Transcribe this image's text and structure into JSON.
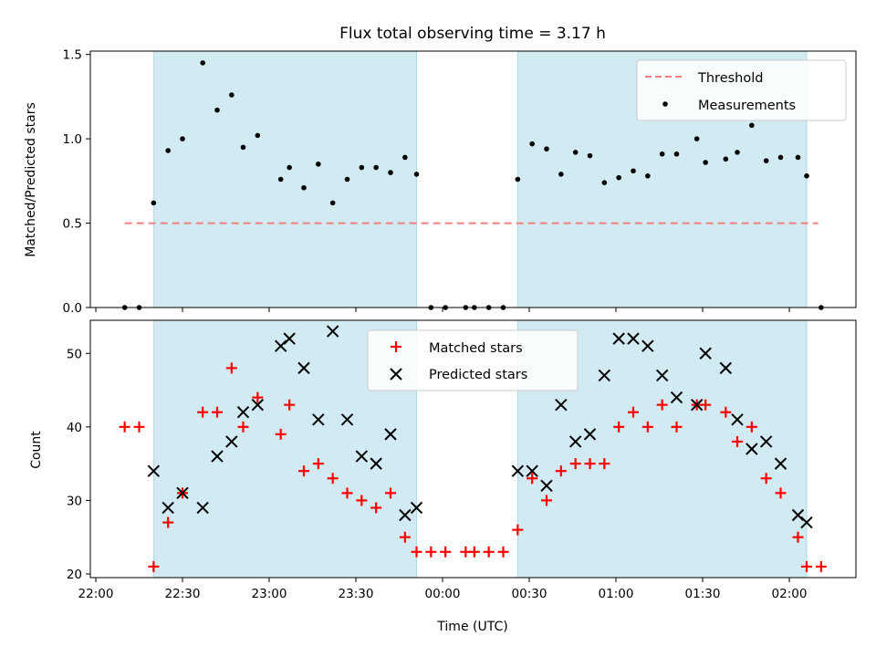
{
  "chart_data": [
    {
      "type": "scatter",
      "title": "Flux total observing time = 3.17 h",
      "xlabel": "",
      "ylabel": "Matched/Predicted stars",
      "ylim": [
        0,
        1.52
      ],
      "yticks": [
        "0.0",
        "0.5",
        "1.0",
        "1.5"
      ],
      "ytick_values": [
        0,
        0.5,
        1.0,
        1.5
      ],
      "xticks": [
        "22:00",
        "22:30",
        "23:00",
        "23:30",
        "00:00",
        "00:30",
        "01:00",
        "01:30",
        "02:00"
      ],
      "legend": {
        "location": "upper right",
        "entries": [
          "Threshold",
          "Measurements"
        ]
      },
      "threshold": {
        "name": "Threshold",
        "value": 0.5,
        "x_start": "22:10",
        "x_end": "02:10",
        "color": "#f08080"
      },
      "shaded_intervals": [
        [
          "22:20",
          "23:51"
        ],
        [
          "00:26",
          "02:06"
        ]
      ],
      "series": [
        {
          "name": "Measurements",
          "marker": "dot",
          "color": "#000000",
          "points": [
            [
              "22:10",
              0.0
            ],
            [
              "22:15",
              0.0
            ],
            [
              "22:20",
              0.62
            ],
            [
              "22:25",
              0.93
            ],
            [
              "22:30",
              1.0
            ],
            [
              "22:37",
              1.45
            ],
            [
              "22:42",
              1.17
            ],
            [
              "22:47",
              1.26
            ],
            [
              "22:51",
              0.95
            ],
            [
              "22:56",
              1.02
            ],
            [
              "23:04",
              0.76
            ],
            [
              "23:07",
              0.83
            ],
            [
              "23:12",
              0.71
            ],
            [
              "23:17",
              0.85
            ],
            [
              "23:22",
              0.62
            ],
            [
              "23:27",
              0.76
            ],
            [
              "23:32",
              0.83
            ],
            [
              "23:37",
              0.83
            ],
            [
              "23:42",
              0.8
            ],
            [
              "23:47",
              0.89
            ],
            [
              "23:51",
              0.79
            ],
            [
              "23:56",
              0.0
            ],
            [
              "00:01",
              0.0
            ],
            [
              "00:08",
              0.0
            ],
            [
              "00:11",
              0.0
            ],
            [
              "00:16",
              0.0
            ],
            [
              "00:21",
              0.0
            ],
            [
              "00:26",
              0.76
            ],
            [
              "00:31",
              0.97
            ],
            [
              "00:36",
              0.94
            ],
            [
              "00:41",
              0.79
            ],
            [
              "00:46",
              0.92
            ],
            [
              "00:51",
              0.9
            ],
            [
              "00:56",
              0.74
            ],
            [
              "01:01",
              0.77
            ],
            [
              "01:06",
              0.81
            ],
            [
              "01:11",
              0.78
            ],
            [
              "01:16",
              0.91
            ],
            [
              "01:21",
              0.91
            ],
            [
              "01:28",
              1.0
            ],
            [
              "01:31",
              0.86
            ],
            [
              "01:38",
              0.88
            ],
            [
              "01:42",
              0.92
            ],
            [
              "01:47",
              1.08
            ],
            [
              "01:52",
              0.87
            ],
            [
              "01:57",
              0.89
            ],
            [
              "02:03",
              0.89
            ],
            [
              "02:06",
              0.78
            ],
            [
              "02:11",
              0.0
            ]
          ]
        }
      ]
    },
    {
      "type": "scatter",
      "title": "",
      "xlabel": "Time (UTC)",
      "ylabel": "Count",
      "ylim": [
        19.5,
        54.5
      ],
      "yticks": [
        "20",
        "30",
        "40",
        "50"
      ],
      "ytick_values": [
        20,
        30,
        40,
        50
      ],
      "xticks": [
        "22:00",
        "22:30",
        "23:00",
        "23:30",
        "00:00",
        "00:30",
        "01:00",
        "01:30",
        "02:00"
      ],
      "legend": {
        "location": "upper center",
        "entries": [
          "Matched stars",
          "Predicted stars"
        ]
      },
      "shaded_intervals": [
        [
          "22:20",
          "23:51"
        ],
        [
          "00:26",
          "02:06"
        ]
      ],
      "series": [
        {
          "name": "Matched stars",
          "marker": "plus",
          "color": "#ff0000",
          "points": [
            [
              "22:10",
              40
            ],
            [
              "22:15",
              40
            ],
            [
              "22:20",
              21
            ],
            [
              "22:25",
              27
            ],
            [
              "22:30",
              31
            ],
            [
              "22:37",
              42
            ],
            [
              "22:42",
              42
            ],
            [
              "22:47",
              48
            ],
            [
              "22:51",
              40
            ],
            [
              "22:56",
              44
            ],
            [
              "23:04",
              39
            ],
            [
              "23:07",
              43
            ],
            [
              "23:12",
              34
            ],
            [
              "23:17",
              35
            ],
            [
              "23:22",
              33
            ],
            [
              "23:27",
              31
            ],
            [
              "23:32",
              30
            ],
            [
              "23:37",
              29
            ],
            [
              "23:42",
              31
            ],
            [
              "23:47",
              25
            ],
            [
              "23:51",
              23
            ],
            [
              "23:56",
              23
            ],
            [
              "00:01",
              23
            ],
            [
              "00:08",
              23
            ],
            [
              "00:11",
              23
            ],
            [
              "00:16",
              23
            ],
            [
              "00:21",
              23
            ],
            [
              "00:26",
              26
            ],
            [
              "00:31",
              33
            ],
            [
              "00:36",
              30
            ],
            [
              "00:41",
              34
            ],
            [
              "00:46",
              35
            ],
            [
              "00:51",
              35
            ],
            [
              "00:56",
              35
            ],
            [
              "01:01",
              40
            ],
            [
              "01:06",
              42
            ],
            [
              "01:11",
              40
            ],
            [
              "01:16",
              43
            ],
            [
              "01:21",
              40
            ],
            [
              "01:28",
              43
            ],
            [
              "01:31",
              43
            ],
            [
              "01:38",
              42
            ],
            [
              "01:42",
              38
            ],
            [
              "01:47",
              40
            ],
            [
              "01:52",
              33
            ],
            [
              "01:57",
              31
            ],
            [
              "02:03",
              25
            ],
            [
              "02:06",
              21
            ],
            [
              "02:11",
              21
            ]
          ]
        },
        {
          "name": "Predicted stars",
          "marker": "x",
          "color": "#000000",
          "points": [
            [
              "22:20",
              34
            ],
            [
              "22:25",
              29
            ],
            [
              "22:30",
              31
            ],
            [
              "22:37",
              29
            ],
            [
              "22:42",
              36
            ],
            [
              "22:47",
              38
            ],
            [
              "22:51",
              42
            ],
            [
              "22:56",
              43
            ],
            [
              "23:04",
              51
            ],
            [
              "23:07",
              52
            ],
            [
              "23:12",
              48
            ],
            [
              "23:17",
              41
            ],
            [
              "23:22",
              53
            ],
            [
              "23:27",
              41
            ],
            [
              "23:32",
              36
            ],
            [
              "23:37",
              35
            ],
            [
              "23:42",
              39
            ],
            [
              "23:47",
              28
            ],
            [
              "23:51",
              29
            ],
            [
              "00:26",
              34
            ],
            [
              "00:31",
              34
            ],
            [
              "00:36",
              32
            ],
            [
              "00:41",
              43
            ],
            [
              "00:46",
              38
            ],
            [
              "00:51",
              39
            ],
            [
              "00:56",
              47
            ],
            [
              "01:01",
              52
            ],
            [
              "01:06",
              52
            ],
            [
              "01:11",
              51
            ],
            [
              "01:16",
              47
            ],
            [
              "01:21",
              44
            ],
            [
              "01:28",
              43
            ],
            [
              "01:31",
              50
            ],
            [
              "01:38",
              48
            ],
            [
              "01:42",
              41
            ],
            [
              "01:47",
              37
            ],
            [
              "01:52",
              38
            ],
            [
              "01:57",
              35
            ],
            [
              "02:03",
              28
            ],
            [
              "02:06",
              27
            ]
          ]
        }
      ]
    }
  ],
  "colors": {
    "shade_fill": "#add8e6",
    "threshold_line": "#f08080",
    "measurement": "#000000",
    "matched": "#ff0000",
    "predicted": "#000000"
  }
}
